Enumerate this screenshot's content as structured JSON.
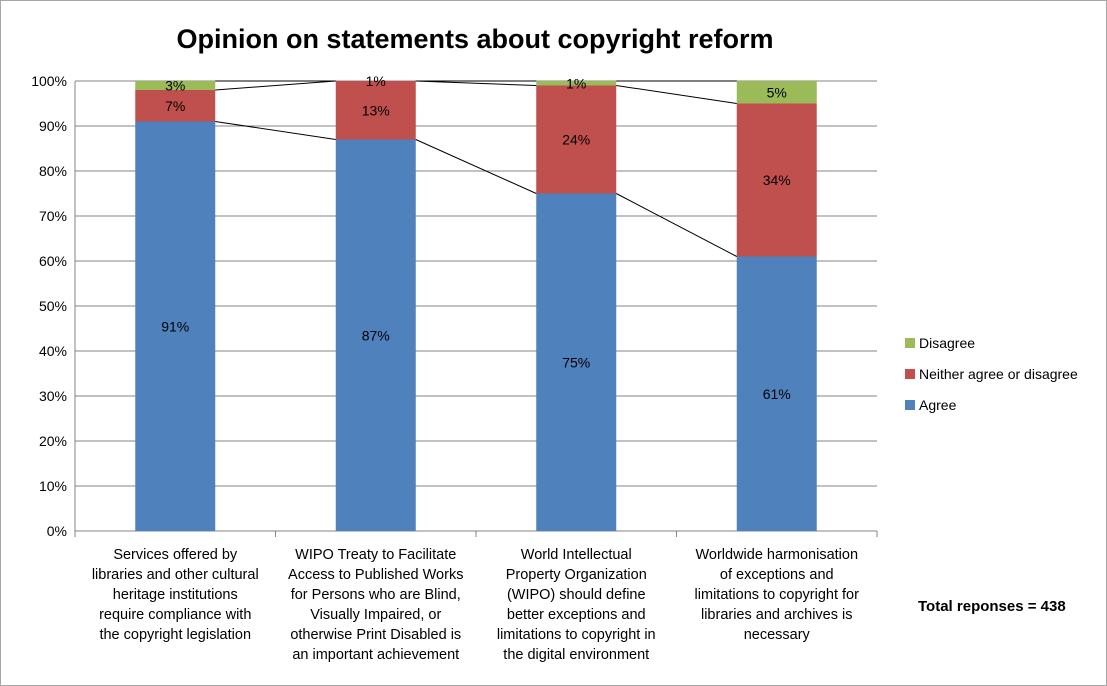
{
  "chart_data": {
    "type": "bar",
    "stacked": true,
    "title": "Opinion on statements about copyright reform",
    "categories": [
      "Services offered by libraries and other cultural heritage institutions require compliance with the copyright legislation",
      "WIPO Treaty to Facilitate Access to Published Works for Persons who are Blind, Visually Impaired, or otherwise Print Disabled is an important achievement",
      "World Intellectual Property Organization (WIPO) should define better exceptions and limitations to copyright in the digital environment",
      "Worldwide harmonisation of exceptions and limitations to copyright for libraries and archives is necessary"
    ],
    "category_lines": [
      [
        "Services offered by",
        "libraries and other cultural",
        "heritage institutions",
        "require compliance with",
        "the copyright legislation"
      ],
      [
        "WIPO Treaty to Facilitate",
        "Access to Published Works",
        "for Persons who are Blind,",
        "Visually Impaired, or",
        "otherwise Print Disabled is",
        "an important achievement"
      ],
      [
        "World Intellectual",
        "Property Organization",
        "(WIPO) should define",
        "better exceptions and",
        "limitations to copyright in",
        "the digital environment"
      ],
      [
        "Worldwide harmonisation",
        "of exceptions and",
        "limitations to copyright for",
        "libraries and archives is",
        "necessary"
      ]
    ],
    "series": [
      {
        "name": "Agree",
        "color": "#4f81bd",
        "values": [
          91,
          87,
          75,
          61
        ],
        "labels": [
          "91%",
          "87%",
          "75%",
          "61%"
        ]
      },
      {
        "name": "Neither agree or disagree",
        "color": "#c0504d",
        "values": [
          7,
          13,
          24,
          34
        ],
        "labels": [
          "7%",
          "13%",
          "24%",
          "34%"
        ]
      },
      {
        "name": "Disagree",
        "color": "#9bbb59",
        "values": [
          3,
          1,
          1,
          5
        ],
        "labels": [
          "3%",
          "1%",
          "1%",
          "5%"
        ]
      }
    ],
    "ylim": [
      0,
      100
    ],
    "yticks": [
      "0%",
      "10%",
      "20%",
      "30%",
      "40%",
      "50%",
      "60%",
      "70%",
      "80%",
      "90%",
      "100%"
    ],
    "grid": true,
    "series_lines": true,
    "legend_position": "right"
  },
  "footnote": "Total reponses = 438"
}
